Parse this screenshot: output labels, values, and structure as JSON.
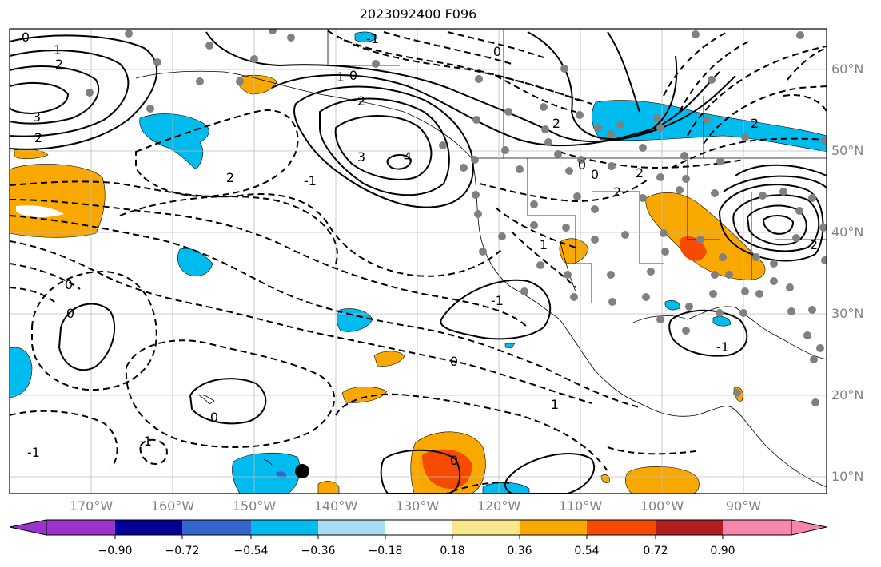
{
  "title": "2023092400 F096",
  "lat_labels": [
    "60°N",
    "50°N",
    "40°N",
    "30°N",
    "20°N",
    "10°N"
  ],
  "lon_labels": [
    "170°W",
    "160°W",
    "150°W",
    "140°W",
    "130°W",
    "120°W",
    "110°W",
    "100°W",
    "90°W"
  ],
  "colorbar": {
    "tick_labels": [
      "−0.90",
      "−0.72",
      "−0.54",
      "−0.36",
      "−0.18",
      "0.18",
      "0.36",
      "0.54",
      "0.72",
      "0.90"
    ],
    "colors": [
      "#9933cc",
      "#000099",
      "#3366cc",
      "#00bbee",
      "#aaddf5",
      "#ffffff",
      "#f9e78a",
      "#f9a800",
      "#f54a00",
      "#b02020",
      "#f786a8"
    ]
  },
  "contour_labels": [
    {
      "text": "0"
    },
    {
      "text": "1"
    },
    {
      "text": "2"
    },
    {
      "text": "3"
    },
    {
      "text": "2"
    },
    {
      "text": "-1"
    },
    {
      "text": "0"
    },
    {
      "text": "1"
    },
    {
      "text": "2"
    },
    {
      "text": "3"
    },
    {
      "text": "4"
    },
    {
      "text": "2"
    },
    {
      "text": "0"
    },
    {
      "text": "0"
    },
    {
      "text": "2"
    },
    {
      "text": "2"
    },
    {
      "text": "2"
    },
    {
      "text": "-1"
    },
    {
      "text": "0"
    },
    {
      "text": "1"
    },
    {
      "text": "-1"
    },
    {
      "text": "0"
    },
    {
      "text": "0"
    },
    {
      "text": "-1"
    },
    {
      "text": "0"
    },
    {
      "text": "-1"
    },
    {
      "text": "0"
    },
    {
      "text": "1"
    },
    {
      "text": "0"
    },
    {
      "text": "2"
    },
    {
      "text": "2"
    },
    {
      "text": "-1"
    }
  ],
  "colors": {
    "land": "#000000",
    "grid": "#bbbbbb",
    "station": "#808080",
    "axis_label": "#808080"
  }
}
